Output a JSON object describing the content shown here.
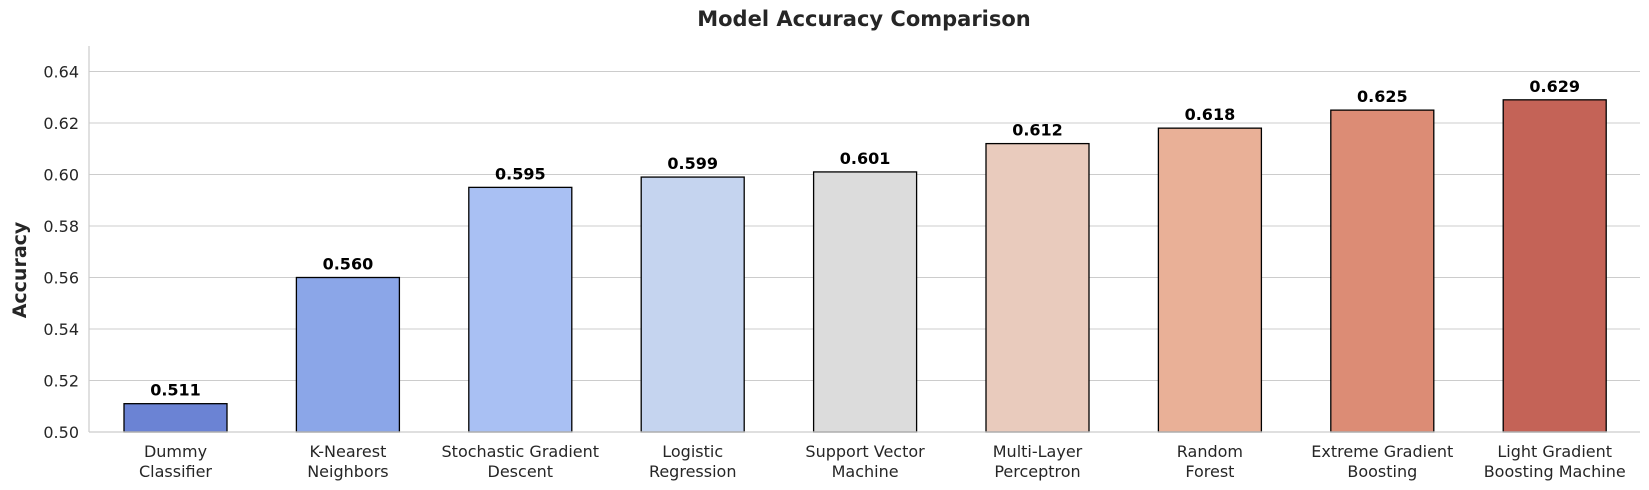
{
  "chart_data": {
    "type": "bar",
    "title": "Model Accuracy Comparison",
    "xlabel": "",
    "ylabel": "Accuracy",
    "ylim": [
      0.5,
      0.65
    ],
    "yticks": [
      "0.50",
      "0.52",
      "0.54",
      "0.56",
      "0.58",
      "0.60",
      "0.62",
      "0.64"
    ],
    "grid": "horizontal",
    "categories": [
      [
        "Dummy",
        "Classifier"
      ],
      [
        "K-Nearest",
        "Neighbors"
      ],
      [
        "Stochastic Gradient",
        "Descent"
      ],
      [
        "Logistic",
        "Regression"
      ],
      [
        "Support Vector",
        "Machine"
      ],
      [
        "Multi-Layer",
        "Perceptron"
      ],
      [
        "Random",
        "Forest"
      ],
      [
        "Extreme Gradient",
        "Boosting"
      ],
      [
        "Light Gradient",
        "Boosting Machine"
      ]
    ],
    "values": [
      0.511,
      0.56,
      0.595,
      0.599,
      0.601,
      0.612,
      0.618,
      0.625,
      0.629
    ],
    "data_labels": [
      "0.511",
      "0.560",
      "0.595",
      "0.599",
      "0.601",
      "0.612",
      "0.618",
      "0.625",
      "0.629"
    ],
    "colors": [
      "#6b83d4",
      "#8ba6e8",
      "#a9c0f3",
      "#c5d4ef",
      "#dcdcdc",
      "#e9cbbd",
      "#e9b097",
      "#dc8c75",
      "#c46357"
    ]
  }
}
